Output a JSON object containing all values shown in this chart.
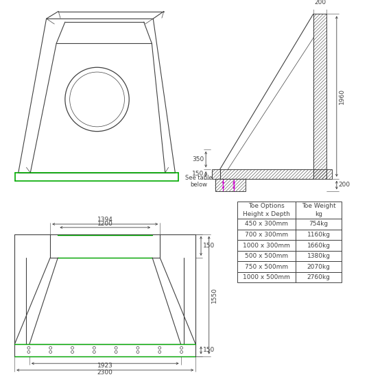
{
  "bg_color": "#ffffff",
  "lc": "#404040",
  "gc": "#00aa00",
  "mc": "#cc00cc",
  "table_rows": [
    [
      "450 x 300mm",
      "754kg"
    ],
    [
      "700 x 300mm",
      "1160kg"
    ],
    [
      "1000 x 300mm",
      "1660kg"
    ],
    [
      "500 x 500mm",
      "1380kg"
    ],
    [
      "750 x 500mm",
      "2070kg"
    ],
    [
      "1000 x 500mm",
      "2760kg"
    ]
  ],
  "col1_header": "Toe Options\nHeight x Depth",
  "col2_header": "Toe Weight\nkg"
}
